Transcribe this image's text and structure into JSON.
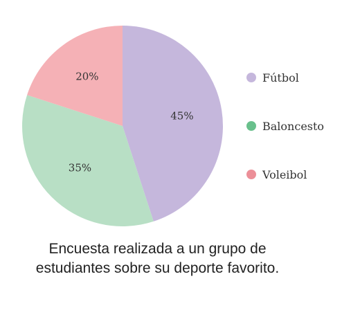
{
  "chart_data": {
    "type": "pie",
    "slices": [
      {
        "label": "Fútbol",
        "value": 45,
        "display": "45%",
        "color": "#c5b7dc"
      },
      {
        "label": "Baloncesto",
        "value": 35,
        "display": "35%",
        "color": "#b8dfc5"
      },
      {
        "label": "Voleibol",
        "value": 20,
        "display": "20%",
        "color": "#f5b1b6"
      }
    ],
    "legend_colors": [
      "#c5b7dc",
      "#69c08c",
      "#ec8f98"
    ],
    "legend_position": "right",
    "start_angle": "top",
    "direction": "clockwise"
  },
  "caption": {
    "line1": "Encuesta realizada a un grupo de",
    "line2": "estudiantes sobre su deporte favorito."
  }
}
